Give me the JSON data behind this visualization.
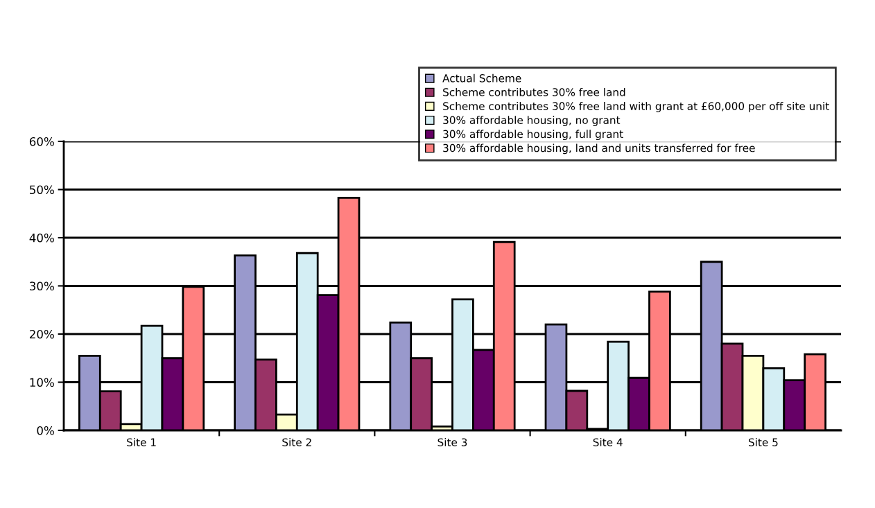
{
  "chart_data": {
    "type": "bar",
    "categories": [
      "Site 1",
      "Site 2",
      "Site 3",
      "Site 4",
      "Site 5"
    ],
    "series": [
      {
        "name": "Actual Scheme",
        "color": "#9999cc",
        "values": [
          15.5,
          36.3,
          22.4,
          22.0,
          35.0
        ]
      },
      {
        "name": "Scheme contributes 30% free land",
        "color": "#993366",
        "values": [
          8.1,
          14.7,
          15.0,
          8.2,
          18.0
        ]
      },
      {
        "name": "Scheme contributes 30% free land with grant at £60,000 per off site unit",
        "color": "#ffffcc",
        "values": [
          1.3,
          3.3,
          0.8,
          0.3,
          15.5
        ]
      },
      {
        "name": "30% affordable housing, no grant",
        "color": "#d4eef4",
        "values": [
          21.7,
          36.8,
          27.2,
          18.4,
          12.9
        ]
      },
      {
        "name": "30% affordable housing, full grant",
        "color": "#660066",
        "values": [
          15.0,
          28.1,
          16.7,
          10.9,
          10.4
        ]
      },
      {
        "name": "30% affordable housing, land and units transferred for free",
        "color": "#ff8080",
        "values": [
          29.8,
          48.3,
          39.1,
          28.8,
          15.8
        ]
      }
    ],
    "ylim": [
      0,
      60
    ],
    "yticks": [
      {
        "value": 0,
        "label": "0%"
      },
      {
        "value": 10,
        "label": "10%"
      },
      {
        "value": 20,
        "label": "20%"
      },
      {
        "value": 30,
        "label": "30%"
      },
      {
        "value": 40,
        "label": "40%"
      },
      {
        "value": 50,
        "label": "50%"
      },
      {
        "value": 60,
        "label": "60%"
      }
    ],
    "grid": "y",
    "legend": "top right"
  }
}
